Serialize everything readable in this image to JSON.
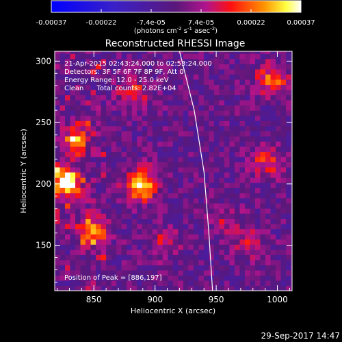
{
  "chart_data": {
    "type": "heatmap",
    "title": "Reconstructed RHESSI Image",
    "xlabel": "Heliocentric X (arcsec)",
    "ylabel": "Heliocentric Y (arcsec)",
    "xlim": [
      818,
      1012
    ],
    "ylim": [
      113,
      308
    ],
    "x_ticks": [
      850,
      900,
      950,
      1000
    ],
    "y_ticks": [
      150,
      200,
      250,
      300
    ],
    "colorbar": {
      "ticks": [
        "-0.00037",
        "-0.00022",
        "-7.4e-05",
        "7.4e-05",
        "0.00022",
        "0.00037"
      ],
      "range": [
        -0.00037,
        0.00037
      ],
      "unit_main": "(photons cm",
      "unit_exp1": "-2",
      "unit_mid": " s",
      "unit_exp2": "-1",
      "unit_mid2": " asec",
      "unit_exp3": "-2",
      "unit_end": ")"
    },
    "annotations": [
      "21-Apr-2015 02:43:24.000 to 02:53:24.000",
      "Detectors: 3F 5F 6F 7F 8P 9F, Att 0",
      "Energy Range: 12.0 - 25.0 keV",
      "Clean      Total counts: 2.82E+04"
    ],
    "peak_text": "Position of Peak = [886,197]",
    "peak": [
      886,
      197
    ],
    "bright_sources": [
      {
        "x": 825,
        "y": 200,
        "value": 0.00037
      },
      {
        "x": 886,
        "y": 197,
        "value": 0.00036
      },
      {
        "x": 846,
        "y": 160,
        "value": 0.00026
      },
      {
        "x": 833,
        "y": 235,
        "value": 0.0002
      },
      {
        "x": 993,
        "y": 283,
        "value": 0.00022
      },
      {
        "x": 880,
        "y": 272,
        "value": 0.00016
      },
      {
        "x": 990,
        "y": 215,
        "value": 0.00018
      },
      {
        "x": 975,
        "y": 150,
        "value": 0.00013
      },
      {
        "x": 905,
        "y": 150,
        "value": 0.00012
      },
      {
        "x": 955,
        "y": 170,
        "value": 0.0001
      }
    ],
    "limb_curve": [
      [
        920,
        308
      ],
      [
        932,
        260
      ],
      [
        940,
        210
      ],
      [
        944,
        160
      ],
      [
        947,
        113
      ]
    ]
  },
  "footer": {
    "date": "29-Sep-2017 14:47"
  }
}
